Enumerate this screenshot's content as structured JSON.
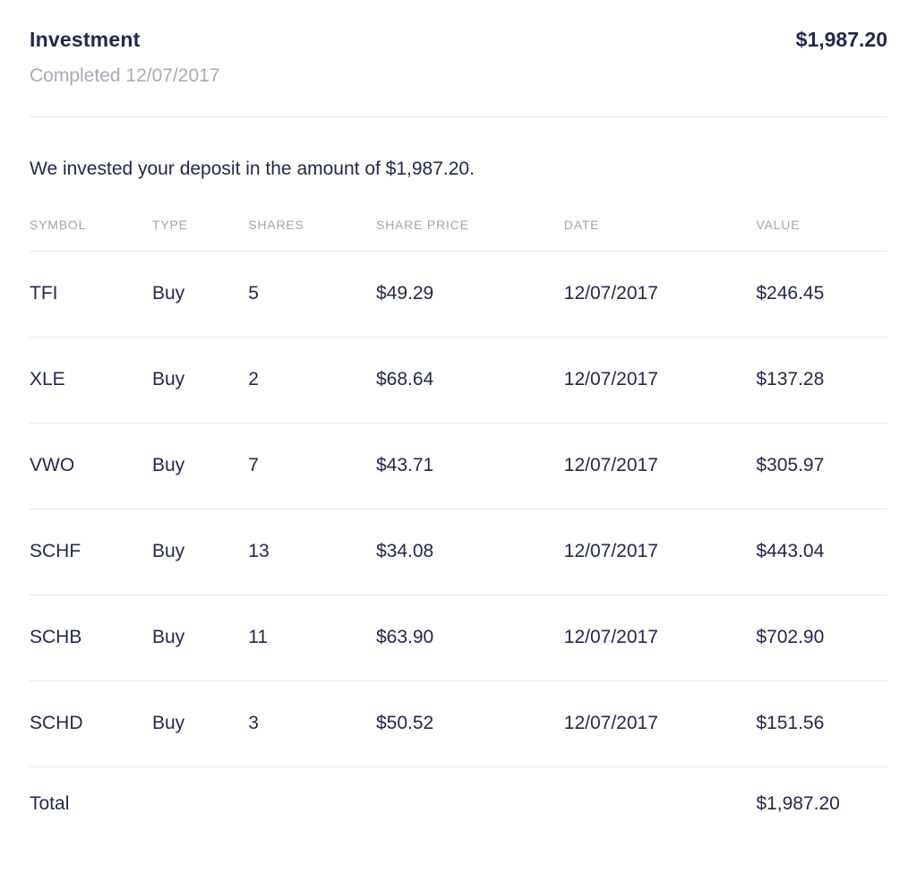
{
  "header": {
    "title": "Investment",
    "amount": "$1,987.20",
    "status": "Completed 12/07/2017"
  },
  "intro": "We invested your deposit in the amount of $1,987.20.",
  "table": {
    "columns": [
      "SYMBOL",
      "TYPE",
      "SHARES",
      "SHARE PRICE",
      "DATE",
      "VALUE"
    ],
    "rows": [
      [
        "TFI",
        "Buy",
        "5",
        "$49.29",
        "12/07/2017",
        "$246.45"
      ],
      [
        "XLE",
        "Buy",
        "2",
        "$68.64",
        "12/07/2017",
        "$137.28"
      ],
      [
        "VWO",
        "Buy",
        "7",
        "$43.71",
        "12/07/2017",
        "$305.97"
      ],
      [
        "SCHF",
        "Buy",
        "13",
        "$34.08",
        "12/07/2017",
        "$443.04"
      ],
      [
        "SCHB",
        "Buy",
        "11",
        "$63.90",
        "12/07/2017",
        "$702.90"
      ],
      [
        "SCHD",
        "Buy",
        "3",
        "$50.52",
        "12/07/2017",
        "$151.56"
      ]
    ],
    "total_label": "Total",
    "total_value": "$1,987.20"
  },
  "colors": {
    "text": "#24284b",
    "muted": "#a9abb7",
    "divider": "#e8e8ed",
    "background": "#ffffff"
  }
}
